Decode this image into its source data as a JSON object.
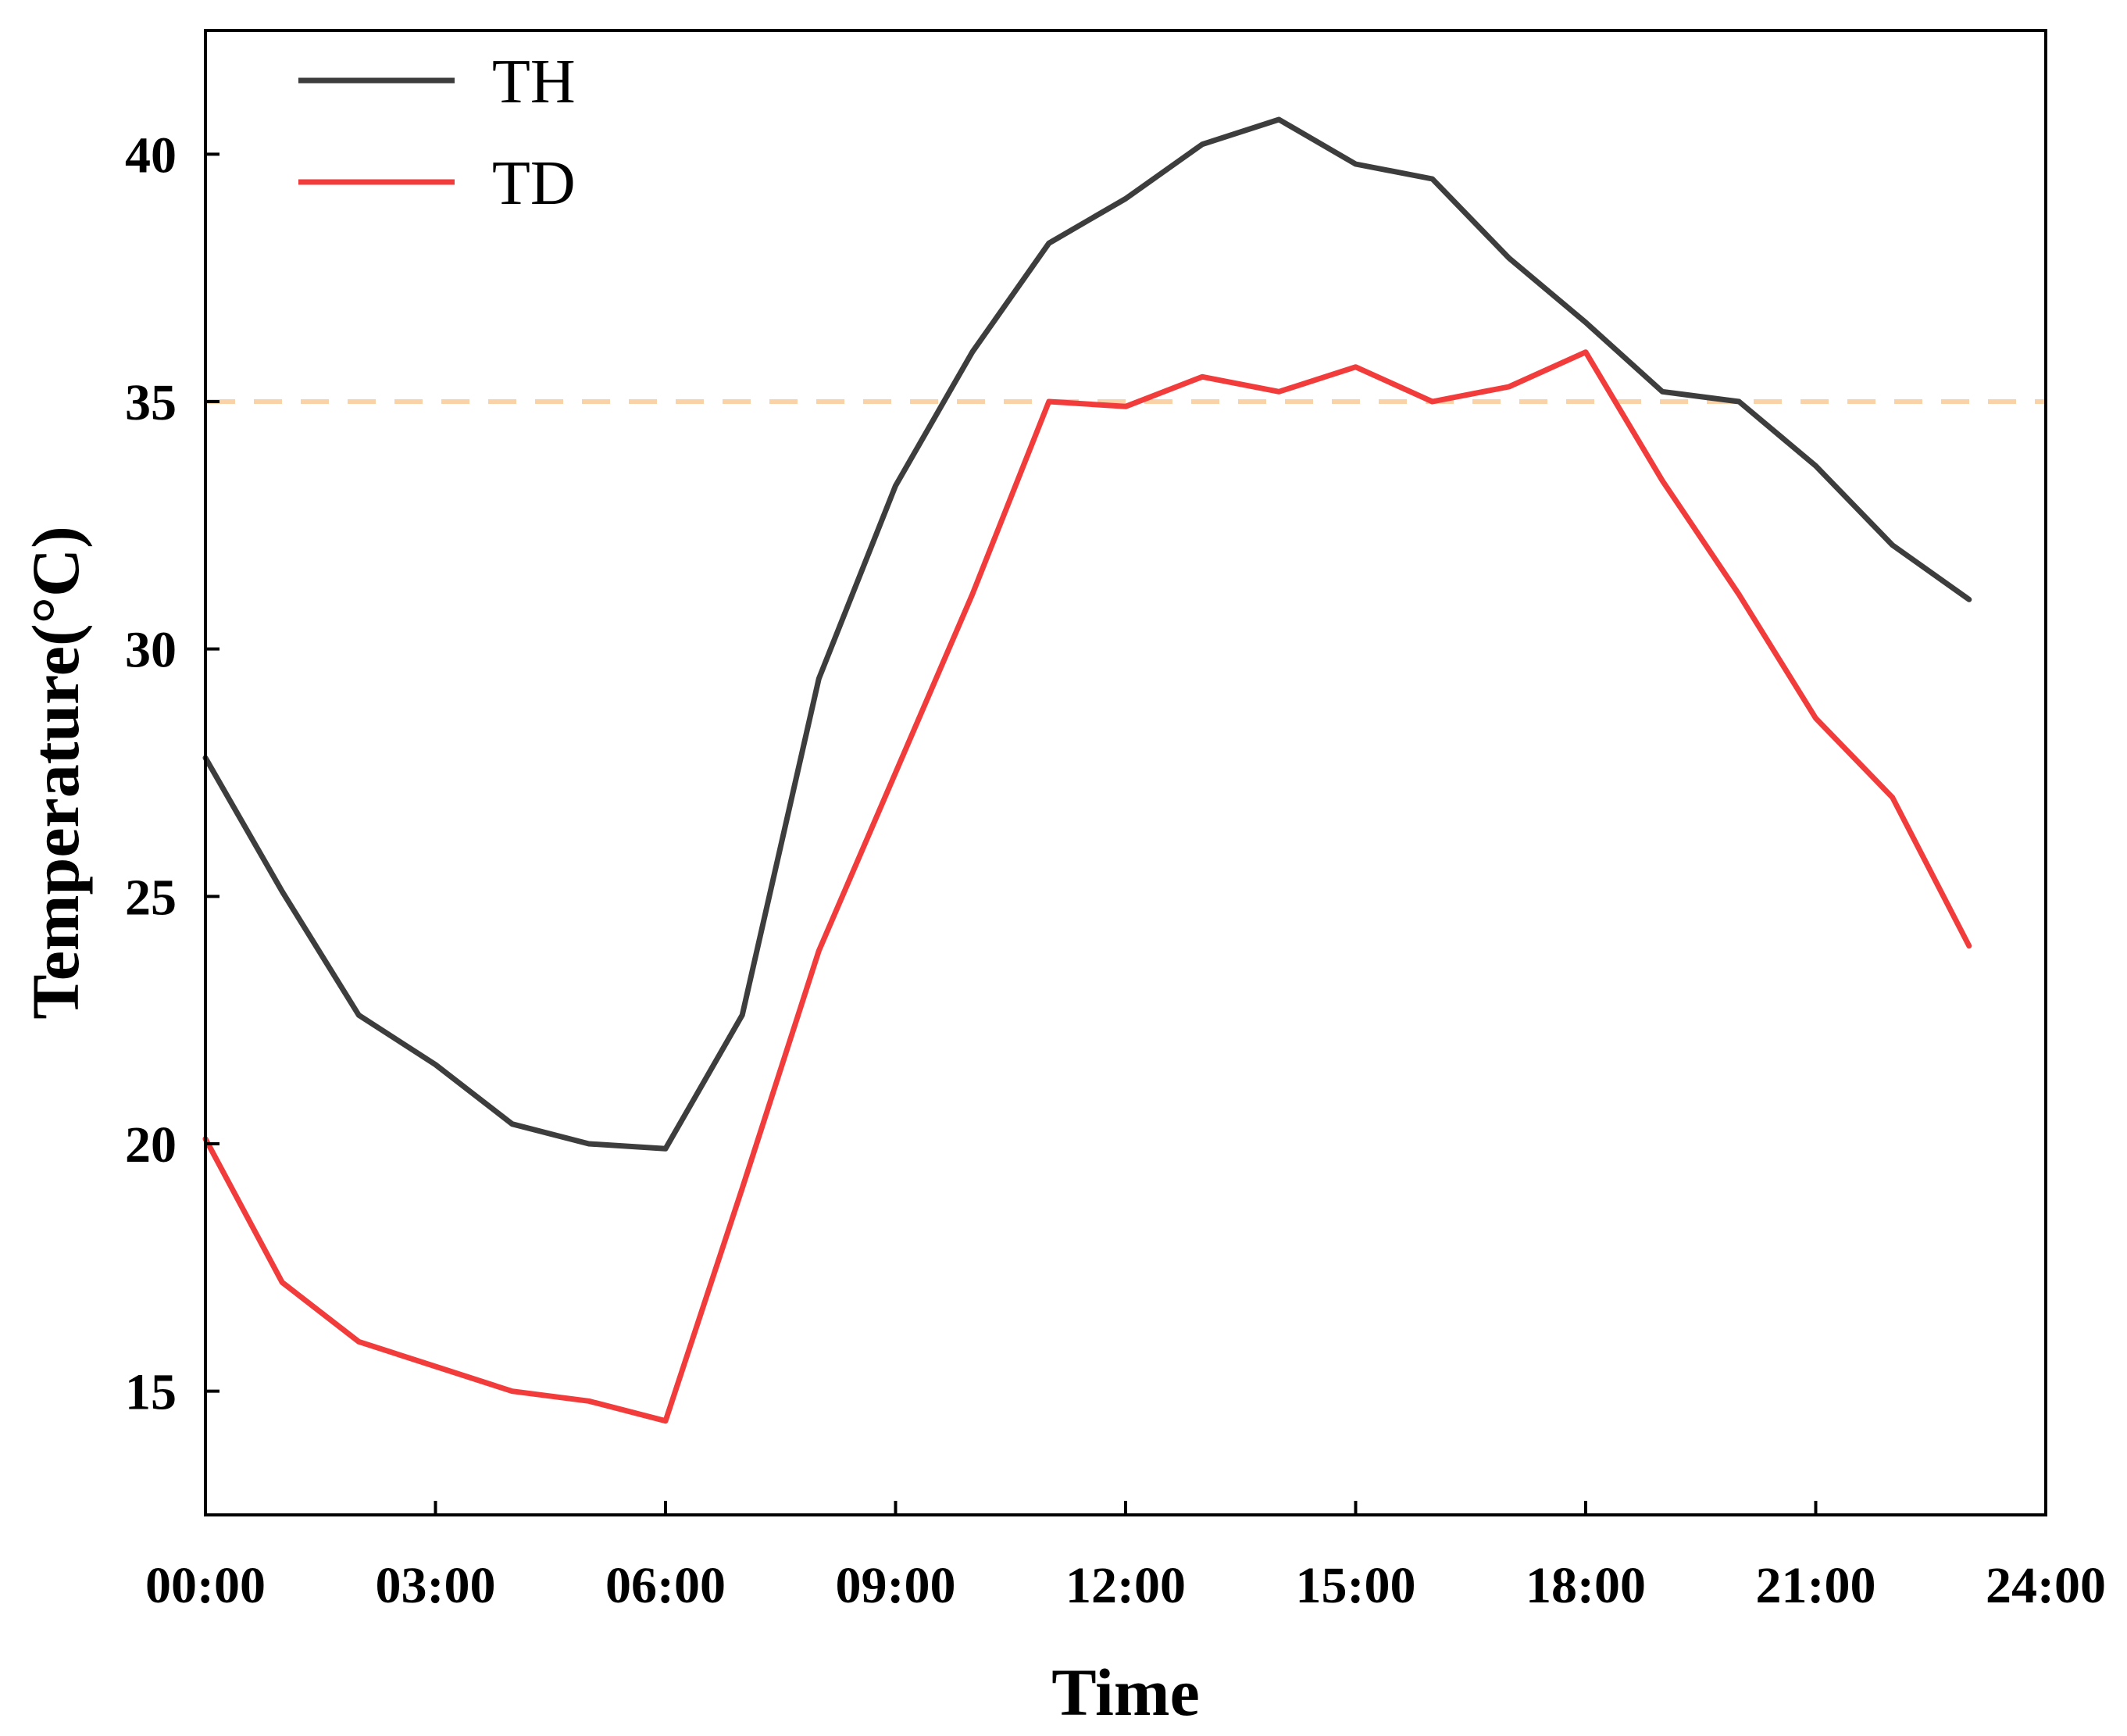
{
  "chart_data": {
    "type": "line",
    "xlabel": "Time",
    "ylabel": "Temperature(°C)",
    "xlim": [
      0,
      24
    ],
    "ylim": [
      12.5,
      42.5
    ],
    "x_ticks": [
      0,
      3,
      6,
      9,
      12,
      15,
      18,
      21,
      24
    ],
    "x_tick_labels": [
      "00:00",
      "03:00",
      "06:00",
      "09:00",
      "12:00",
      "15:00",
      "18:00",
      "21:00",
      "24:00"
    ],
    "y_ticks": [
      15,
      20,
      25,
      30,
      35,
      40
    ],
    "y_tick_labels": [
      "15",
      "20",
      "25",
      "30",
      "35",
      "40"
    ],
    "x": [
      0,
      1,
      2,
      3,
      4,
      5,
      6,
      7,
      8,
      9,
      10,
      11,
      12,
      13,
      14,
      15,
      16,
      17,
      18,
      19,
      20,
      21,
      22,
      23
    ],
    "series": [
      {
        "name": "TH",
        "color": "#3d3d3d",
        "values": [
          27.8,
          25.1,
          22.6,
          21.6,
          20.4,
          20.0,
          19.9,
          22.6,
          29.4,
          33.3,
          36.0,
          38.2,
          39.1,
          40.2,
          40.7,
          39.8,
          39.5,
          37.9,
          36.6,
          35.2,
          35.0,
          33.7,
          32.1,
          31.0
        ]
      },
      {
        "name": "TD",
        "color": "#f23c3c",
        "values": [
          20.1,
          17.2,
          16.0,
          15.5,
          15.0,
          14.8,
          14.4,
          19.1,
          23.9,
          27.5,
          31.1,
          35.0,
          34.9,
          35.5,
          35.2,
          35.7,
          35.0,
          35.3,
          36.0,
          33.4,
          31.1,
          28.6,
          27.0,
          24.0
        ]
      }
    ],
    "reference_line": {
      "y": 35,
      "style": "dashed",
      "color": "#fad2a8"
    },
    "legend_position": "top-left",
    "grid": false
  }
}
